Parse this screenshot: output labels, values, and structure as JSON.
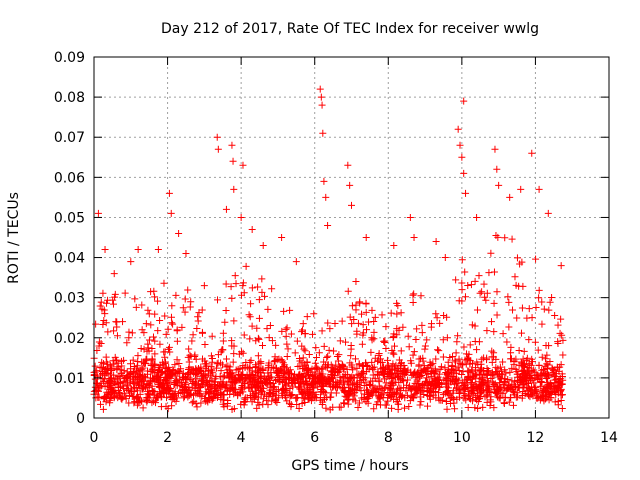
{
  "chart_data": {
    "type": "scatter",
    "title": "Day 212 of 2017, Rate Of TEC Index for receiver wwlg",
    "xlabel": "GPS time / hours",
    "ylabel": "ROTI / TECUs",
    "xlim": [
      0,
      14
    ],
    "ylim": [
      0,
      0.09
    ],
    "x_ticks": [
      0,
      2,
      4,
      6,
      8,
      10,
      12,
      14
    ],
    "x_tick_labels": [
      "0",
      "2",
      "4",
      "6",
      "8",
      "10",
      "12",
      "14"
    ],
    "y_ticks": [
      0,
      0.01,
      0.02,
      0.03,
      0.04,
      0.05,
      0.06,
      0.07,
      0.08,
      0.09
    ],
    "y_tick_labels": [
      "0",
      "0.01",
      "0.02",
      "0.03",
      "0.04",
      "0.05",
      "0.06",
      "0.07",
      "0.08",
      "0.09"
    ],
    "grid": true,
    "marker": "+",
    "color": "#ff0000",
    "data_extent_hours": [
      0,
      12.75
    ],
    "series": [
      {
        "name": "ROTI",
        "baseline": 0.009,
        "notable_points": [
          {
            "x": 0.12,
            "y": 0.051
          },
          {
            "x": 0.3,
            "y": 0.042
          },
          {
            "x": 0.55,
            "y": 0.036
          },
          {
            "x": 1.0,
            "y": 0.039
          },
          {
            "x": 1.2,
            "y": 0.042
          },
          {
            "x": 1.75,
            "y": 0.042
          },
          {
            "x": 2.05,
            "y": 0.056
          },
          {
            "x": 2.1,
            "y": 0.051
          },
          {
            "x": 2.3,
            "y": 0.046
          },
          {
            "x": 2.5,
            "y": 0.041
          },
          {
            "x": 3.0,
            "y": 0.033
          },
          {
            "x": 3.35,
            "y": 0.07
          },
          {
            "x": 3.38,
            "y": 0.067
          },
          {
            "x": 3.6,
            "y": 0.052
          },
          {
            "x": 3.75,
            "y": 0.068
          },
          {
            "x": 3.78,
            "y": 0.064
          },
          {
            "x": 3.8,
            "y": 0.057
          },
          {
            "x": 4.05,
            "y": 0.063
          },
          {
            "x": 4.0,
            "y": 0.05
          },
          {
            "x": 4.3,
            "y": 0.047
          },
          {
            "x": 4.6,
            "y": 0.043
          },
          {
            "x": 5.1,
            "y": 0.045
          },
          {
            "x": 5.5,
            "y": 0.039
          },
          {
            "x": 6.15,
            "y": 0.082
          },
          {
            "x": 6.18,
            "y": 0.08
          },
          {
            "x": 6.2,
            "y": 0.078
          },
          {
            "x": 6.22,
            "y": 0.071
          },
          {
            "x": 6.25,
            "y": 0.059
          },
          {
            "x": 6.3,
            "y": 0.055
          },
          {
            "x": 6.35,
            "y": 0.048
          },
          {
            "x": 6.9,
            "y": 0.063
          },
          {
            "x": 6.95,
            "y": 0.058
          },
          {
            "x": 7.0,
            "y": 0.053
          },
          {
            "x": 7.4,
            "y": 0.045
          },
          {
            "x": 8.15,
            "y": 0.043
          },
          {
            "x": 8.6,
            "y": 0.05
          },
          {
            "x": 8.7,
            "y": 0.045
          },
          {
            "x": 9.3,
            "y": 0.044
          },
          {
            "x": 9.55,
            "y": 0.04
          },
          {
            "x": 9.9,
            "y": 0.072
          },
          {
            "x": 9.95,
            "y": 0.068
          },
          {
            "x": 10.0,
            "y": 0.065
          },
          {
            "x": 10.05,
            "y": 0.061
          },
          {
            "x": 10.1,
            "y": 0.056
          },
          {
            "x": 10.05,
            "y": 0.079
          },
          {
            "x": 10.4,
            "y": 0.05
          },
          {
            "x": 10.9,
            "y": 0.067
          },
          {
            "x": 10.95,
            "y": 0.062
          },
          {
            "x": 11.0,
            "y": 0.058
          },
          {
            "x": 11.3,
            "y": 0.055
          },
          {
            "x": 11.6,
            "y": 0.057
          },
          {
            "x": 11.9,
            "y": 0.066
          },
          {
            "x": 12.1,
            "y": 0.057
          },
          {
            "x": 12.35,
            "y": 0.051
          },
          {
            "x": 12.7,
            "y": 0.038
          }
        ],
        "activity_envelope": [
          {
            "x": 0.0,
            "y": 0.028
          },
          {
            "x": 0.5,
            "y": 0.035
          },
          {
            "x": 1.0,
            "y": 0.03
          },
          {
            "x": 1.5,
            "y": 0.031
          },
          {
            "x": 2.0,
            "y": 0.038
          },
          {
            "x": 2.5,
            "y": 0.034
          },
          {
            "x": 3.0,
            "y": 0.027
          },
          {
            "x": 3.5,
            "y": 0.032
          },
          {
            "x": 4.0,
            "y": 0.04
          },
          {
            "x": 4.5,
            "y": 0.036
          },
          {
            "x": 5.0,
            "y": 0.032
          },
          {
            "x": 5.5,
            "y": 0.027
          },
          {
            "x": 6.0,
            "y": 0.03
          },
          {
            "x": 6.5,
            "y": 0.03
          },
          {
            "x": 7.0,
            "y": 0.036
          },
          {
            "x": 7.5,
            "y": 0.03
          },
          {
            "x": 8.0,
            "y": 0.025
          },
          {
            "x": 8.5,
            "y": 0.034
          },
          {
            "x": 9.0,
            "y": 0.03
          },
          {
            "x": 9.5,
            "y": 0.026
          },
          {
            "x": 10.0,
            "y": 0.042
          },
          {
            "x": 10.5,
            "y": 0.04
          },
          {
            "x": 11.0,
            "y": 0.048
          },
          {
            "x": 11.5,
            "y": 0.045
          },
          {
            "x": 12.0,
            "y": 0.04
          },
          {
            "x": 12.5,
            "y": 0.03
          },
          {
            "x": 12.75,
            "y": 0.025
          }
        ]
      }
    ]
  }
}
